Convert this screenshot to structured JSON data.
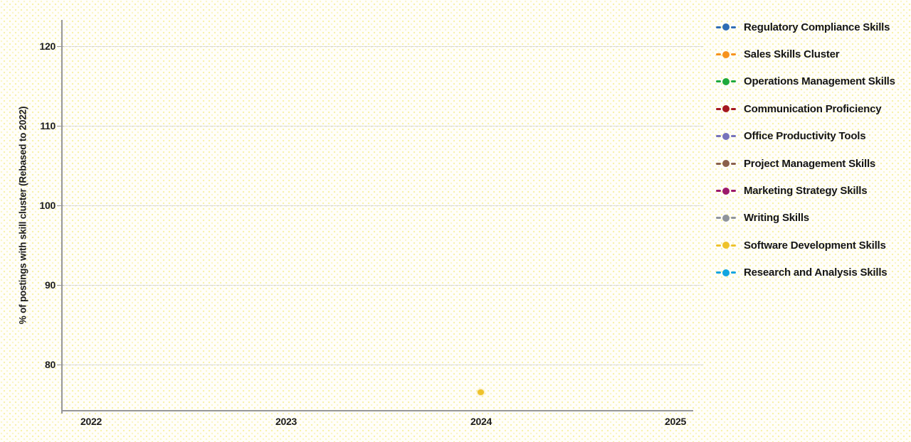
{
  "chart_data": {
    "type": "line",
    "title": "",
    "xlabel": "",
    "ylabel": "% of postings with skill cluster (Rebased to 2022)",
    "xticks": [
      "2022",
      "2023",
      "2024",
      "2025"
    ],
    "yticks": [
      "80",
      "90",
      "100",
      "110",
      "120"
    ],
    "xlim": [
      2021.85,
      2025.13
    ],
    "ylim": [
      74.2,
      123.35
    ],
    "grid": "horizontal",
    "legend_position": "right",
    "marker": "circle",
    "linestyle": "dashed",
    "series": [
      {
        "name": "Regulatory Compliance Skills",
        "color": "#2e6cb5",
        "values": []
      },
      {
        "name": "Sales Skills Cluster",
        "color": "#f6921e",
        "values": []
      },
      {
        "name": "Operations Management Skills",
        "color": "#1ea93b",
        "values": []
      },
      {
        "name": "Communication Proficiency",
        "color": "#a4171f",
        "values": []
      },
      {
        "name": "Office Productivity Tools",
        "color": "#7672bb",
        "values": []
      },
      {
        "name": "Project Management Skills",
        "color": "#8a604b",
        "values": []
      },
      {
        "name": "Marketing Strategy Skills",
        "color": "#9c1a6b",
        "values": []
      },
      {
        "name": "Writing Skills",
        "color": "#8f949c",
        "values": []
      },
      {
        "name": "Software Development Skills",
        "color": "#eec22a",
        "values": [
          {
            "x": 2024,
            "y": 76.5
          }
        ]
      },
      {
        "name": "Research and Analysis Skills",
        "color": "#12a5e0",
        "values": []
      }
    ]
  }
}
